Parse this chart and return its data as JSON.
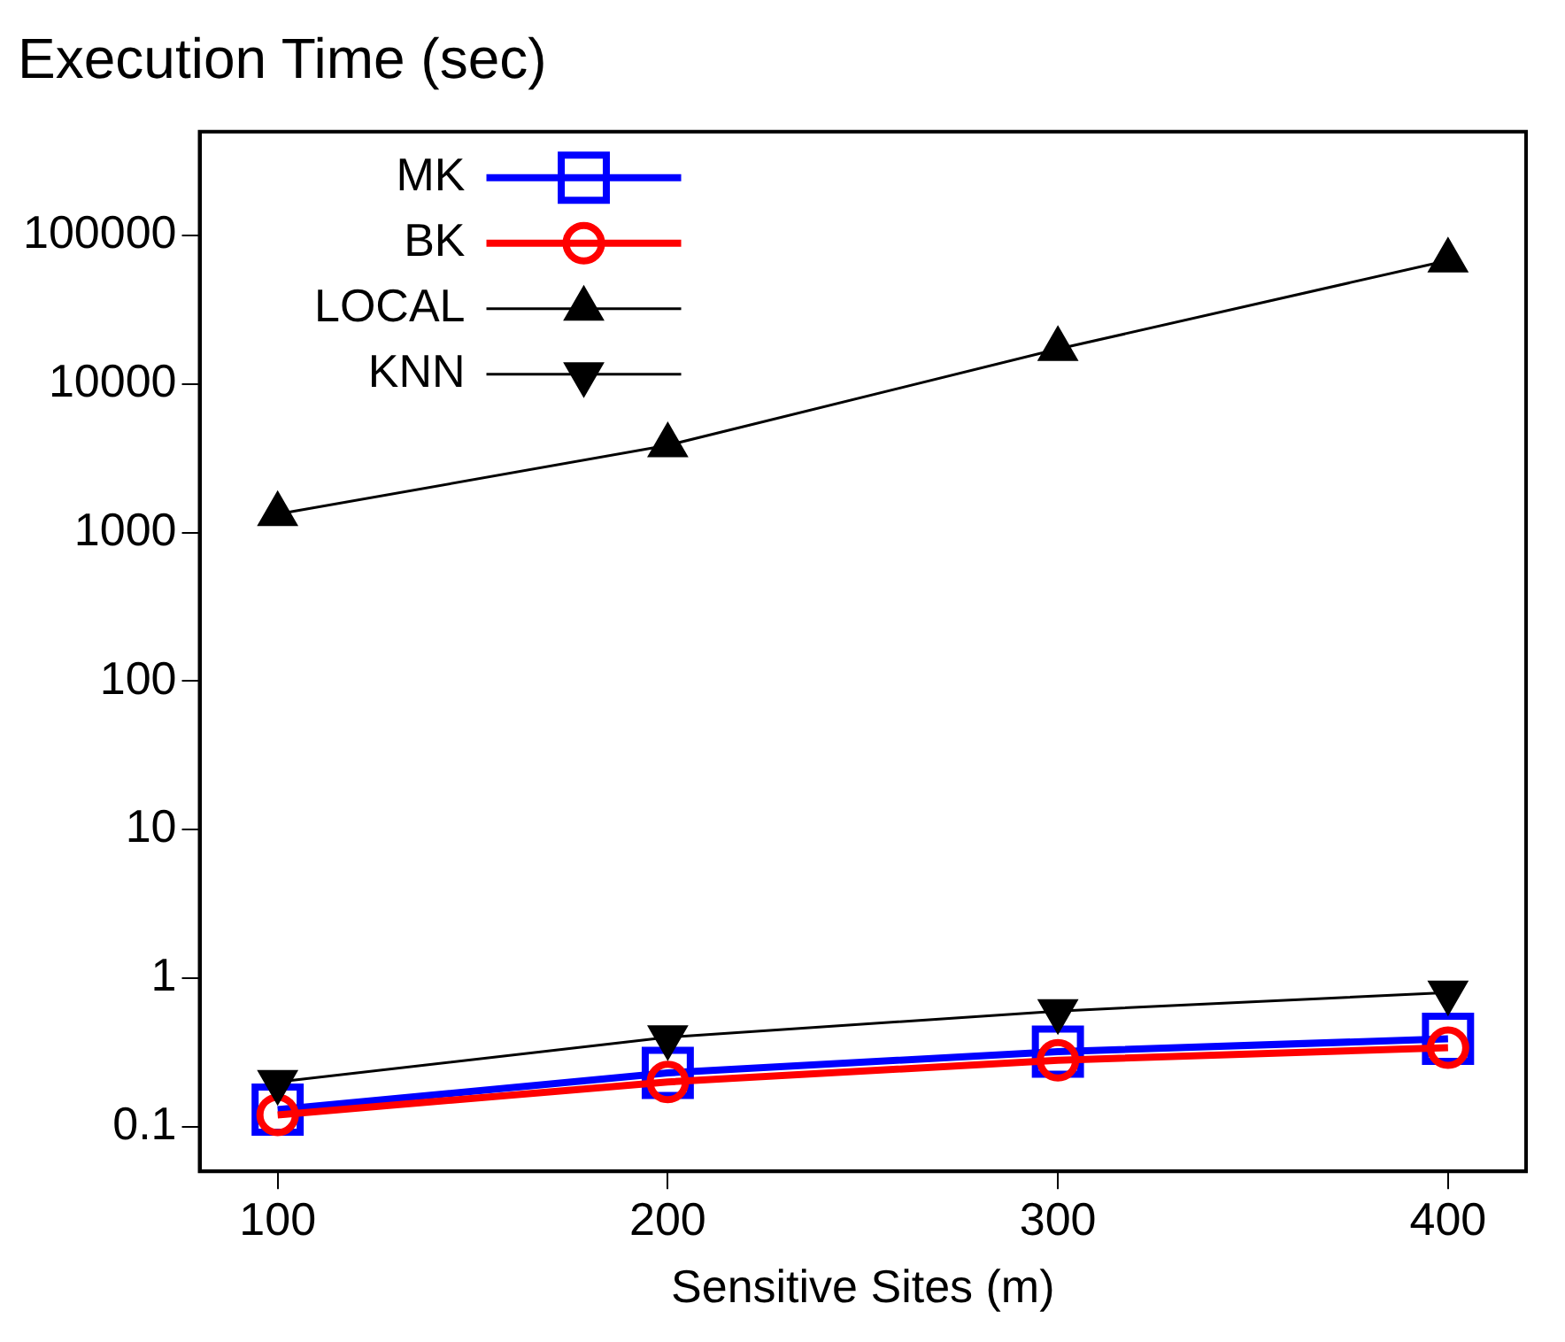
{
  "chart_data": {
    "type": "line",
    "title": "Execution Time (sec)",
    "xlabel": "Sensitive Sites (m)",
    "x": [
      100,
      200,
      300,
      400
    ],
    "xlim": [
      80,
      420
    ],
    "xticks": [
      100,
      200,
      300,
      400
    ],
    "log": "y",
    "ylim": [
      0.05,
      500000
    ],
    "yticks": [
      0.1,
      1,
      10,
      100,
      1000,
      10000,
      100000
    ],
    "grid": false,
    "legend": "top left",
    "line_style": "solid",
    "series": [
      {
        "name": "MK",
        "color": "#0000ff",
        "marker": "square",
        "values": [
          0.13,
          0.23,
          0.32,
          0.39
        ]
      },
      {
        "name": "BK",
        "color": "#ff0000",
        "marker": "circle",
        "values": [
          0.12,
          0.2,
          0.28,
          0.34
        ]
      },
      {
        "name": "LOCAL",
        "color": "#000000",
        "marker": "triangle",
        "values": [
          1330,
          3870,
          17200,
          68000
        ]
      },
      {
        "name": "KNN",
        "color": "#000000",
        "marker": "triangle-down",
        "values": [
          0.2,
          0.4,
          0.6,
          0.8
        ]
      }
    ]
  }
}
